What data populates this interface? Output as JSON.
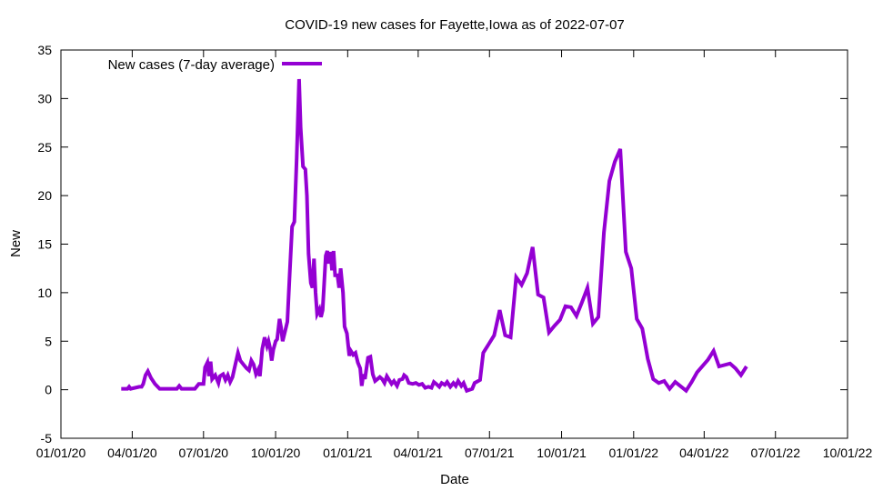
{
  "chart_data": {
    "type": "line",
    "title": "COVID-19 new cases for Fayette,Iowa as of 2022-07-07",
    "xlabel": "Date",
    "ylabel": "New",
    "xlim": [
      "2020-01-01",
      "2022-10-01"
    ],
    "ylim": [
      -5,
      35
    ],
    "x_ticks": [
      "01/01/20",
      "04/01/20",
      "07/01/20",
      "10/01/20",
      "01/01/21",
      "04/01/21",
      "07/01/21",
      "10/01/21",
      "01/01/22",
      "04/01/22",
      "07/01/22",
      "10/01/22"
    ],
    "y_ticks": [
      -5,
      0,
      5,
      10,
      15,
      20,
      25,
      30,
      35
    ],
    "legend_position": "top-left",
    "grid": false,
    "colors": {
      "line": "#9400d3",
      "axis": "#000000",
      "background": "#ffffff"
    },
    "series": [
      {
        "name": "New cases (7-day average)",
        "points": [
          [
            "2020-03-18",
            0.1
          ],
          [
            "2020-03-26",
            0.1
          ],
          [
            "2020-03-28",
            0.3
          ],
          [
            "2020-03-30",
            0.1
          ],
          [
            "2020-04-10",
            0.3
          ],
          [
            "2020-04-13",
            0.3
          ],
          [
            "2020-04-15",
            0.6
          ],
          [
            "2020-04-18",
            1.5
          ],
          [
            "2020-04-21",
            1.9
          ],
          [
            "2020-04-25",
            1.2
          ],
          [
            "2020-04-30",
            0.6
          ],
          [
            "2020-05-06",
            0.1
          ],
          [
            "2020-05-20",
            0.1
          ],
          [
            "2020-05-28",
            0.1
          ],
          [
            "2020-05-31",
            0.4
          ],
          [
            "2020-06-03",
            0.1
          ],
          [
            "2020-06-20",
            0.1
          ],
          [
            "2020-06-25",
            0.6
          ],
          [
            "2020-07-01",
            0.6
          ],
          [
            "2020-07-03",
            2.3
          ],
          [
            "2020-07-06",
            2.8
          ],
          [
            "2020-07-08",
            1.4
          ],
          [
            "2020-07-10",
            2.9
          ],
          [
            "2020-07-12",
            1.1
          ],
          [
            "2020-07-16",
            1.5
          ],
          [
            "2020-07-20",
            0.7
          ],
          [
            "2020-07-22",
            1.4
          ],
          [
            "2020-07-26",
            1.6
          ],
          [
            "2020-07-29",
            1.0
          ],
          [
            "2020-08-01",
            1.5
          ],
          [
            "2020-08-04",
            0.8
          ],
          [
            "2020-08-07",
            1.3
          ],
          [
            "2020-08-10",
            2.4
          ],
          [
            "2020-08-14",
            3.8
          ],
          [
            "2020-08-17",
            3.0
          ],
          [
            "2020-08-21",
            2.6
          ],
          [
            "2020-08-25",
            2.2
          ],
          [
            "2020-08-28",
            2.0
          ],
          [
            "2020-08-31",
            3.0
          ],
          [
            "2020-09-03",
            2.6
          ],
          [
            "2020-09-06",
            1.6
          ],
          [
            "2020-09-09",
            2.1
          ],
          [
            "2020-09-11",
            1.4
          ],
          [
            "2020-09-14",
            4.2
          ],
          [
            "2020-09-17",
            5.4
          ],
          [
            "2020-09-20",
            4.5
          ],
          [
            "2020-09-22",
            5.0
          ],
          [
            "2020-09-24",
            4.3
          ],
          [
            "2020-09-26",
            3.0
          ],
          [
            "2020-09-28",
            4.1
          ],
          [
            "2020-10-01",
            5.0
          ],
          [
            "2020-10-03",
            5.2
          ],
          [
            "2020-10-06",
            7.3
          ],
          [
            "2020-10-08",
            6.4
          ],
          [
            "2020-10-10",
            5.0
          ],
          [
            "2020-10-13",
            6.0
          ],
          [
            "2020-10-16",
            7.0
          ],
          [
            "2020-10-19",
            12.0
          ],
          [
            "2020-10-22",
            16.8
          ],
          [
            "2020-10-25",
            17.3
          ],
          [
            "2020-10-28",
            24.0
          ],
          [
            "2020-10-31",
            32.0
          ],
          [
            "2020-11-02",
            27.0
          ],
          [
            "2020-11-05",
            23.0
          ],
          [
            "2020-11-08",
            22.7
          ],
          [
            "2020-11-10",
            20.0
          ],
          [
            "2020-11-12",
            14.0
          ],
          [
            "2020-11-15",
            11.0
          ],
          [
            "2020-11-17",
            10.5
          ],
          [
            "2020-11-19",
            13.5
          ],
          [
            "2020-11-21",
            10.0
          ],
          [
            "2020-11-23",
            7.8
          ],
          [
            "2020-11-26",
            8.3
          ],
          [
            "2020-11-28",
            7.5
          ],
          [
            "2020-11-30",
            8.2
          ],
          [
            "2020-12-02",
            11.0
          ],
          [
            "2020-12-04",
            13.8
          ],
          [
            "2020-12-06",
            14.3
          ],
          [
            "2020-12-08",
            13.0
          ],
          [
            "2020-12-10",
            14.2
          ],
          [
            "2020-12-12",
            12.3
          ],
          [
            "2020-12-14",
            14.3
          ],
          [
            "2020-12-16",
            11.8
          ],
          [
            "2020-12-19",
            11.8
          ],
          [
            "2020-12-21",
            10.5
          ],
          [
            "2020-12-23",
            12.5
          ],
          [
            "2020-12-26",
            10.0
          ],
          [
            "2020-12-28",
            6.5
          ],
          [
            "2020-12-31",
            5.8
          ],
          [
            "2021-01-03",
            3.5
          ],
          [
            "2021-01-05",
            4.0
          ],
          [
            "2021-01-08",
            3.6
          ],
          [
            "2021-01-11",
            3.8
          ],
          [
            "2021-01-14",
            2.8
          ],
          [
            "2021-01-17",
            2.2
          ],
          [
            "2021-01-19",
            0.4
          ],
          [
            "2021-01-21",
            1.6
          ],
          [
            "2021-01-23",
            1.1
          ],
          [
            "2021-01-27",
            3.3
          ],
          [
            "2021-01-30",
            3.4
          ],
          [
            "2021-02-02",
            1.6
          ],
          [
            "2021-02-05",
            0.9
          ],
          [
            "2021-02-08",
            1.1
          ],
          [
            "2021-02-11",
            1.3
          ],
          [
            "2021-02-14",
            1.1
          ],
          [
            "2021-02-17",
            0.7
          ],
          [
            "2021-02-20",
            1.4
          ],
          [
            "2021-02-23",
            1.0
          ],
          [
            "2021-02-26",
            0.6
          ],
          [
            "2021-03-01",
            0.9
          ],
          [
            "2021-03-05",
            0.4
          ],
          [
            "2021-03-08",
            1.0
          ],
          [
            "2021-03-12",
            1.1
          ],
          [
            "2021-03-14",
            1.5
          ],
          [
            "2021-03-17",
            1.3
          ],
          [
            "2021-03-20",
            0.7
          ],
          [
            "2021-03-25",
            0.6
          ],
          [
            "2021-03-29",
            0.7
          ],
          [
            "2021-04-02",
            0.5
          ],
          [
            "2021-04-06",
            0.6
          ],
          [
            "2021-04-10",
            0.2
          ],
          [
            "2021-04-14",
            0.3
          ],
          [
            "2021-04-18",
            0.2
          ],
          [
            "2021-04-21",
            0.8
          ],
          [
            "2021-04-24",
            0.6
          ],
          [
            "2021-04-28",
            0.3
          ],
          [
            "2021-05-01",
            0.7
          ],
          [
            "2021-05-05",
            0.5
          ],
          [
            "2021-05-08",
            0.8
          ],
          [
            "2021-05-12",
            0.3
          ],
          [
            "2021-05-16",
            0.7
          ],
          [
            "2021-05-19",
            0.4
          ],
          [
            "2021-05-22",
            0.9
          ],
          [
            "2021-05-26",
            0.4
          ],
          [
            "2021-05-29",
            0.7
          ],
          [
            "2021-06-02",
            -0.1
          ],
          [
            "2021-06-09",
            0.1
          ],
          [
            "2021-06-12",
            0.7
          ],
          [
            "2021-06-19",
            1.0
          ],
          [
            "2021-06-23",
            3.8
          ],
          [
            "2021-06-30",
            4.7
          ],
          [
            "2021-07-07",
            5.6
          ],
          [
            "2021-07-14",
            8.2
          ],
          [
            "2021-07-21",
            5.6
          ],
          [
            "2021-07-28",
            5.4
          ],
          [
            "2021-08-04",
            11.6
          ],
          [
            "2021-08-11",
            10.8
          ],
          [
            "2021-08-18",
            12.0
          ],
          [
            "2021-08-25",
            14.7
          ],
          [
            "2021-09-01",
            9.8
          ],
          [
            "2021-09-08",
            9.5
          ],
          [
            "2021-09-15",
            5.9
          ],
          [
            "2021-09-22",
            6.6
          ],
          [
            "2021-09-29",
            7.2
          ],
          [
            "2021-10-06",
            8.6
          ],
          [
            "2021-10-13",
            8.5
          ],
          [
            "2021-10-20",
            7.6
          ],
          [
            "2021-10-27",
            9.0
          ],
          [
            "2021-11-03",
            10.5
          ],
          [
            "2021-11-10",
            6.8
          ],
          [
            "2021-11-17",
            7.5
          ],
          [
            "2021-11-24",
            16.2
          ],
          [
            "2021-12-01",
            21.5
          ],
          [
            "2021-12-08",
            23.5
          ],
          [
            "2021-12-15",
            24.8
          ],
          [
            "2021-12-22",
            14.2
          ],
          [
            "2021-12-29",
            12.5
          ],
          [
            "2022-01-05",
            7.3
          ],
          [
            "2022-01-12",
            6.3
          ],
          [
            "2022-01-19",
            3.2
          ],
          [
            "2022-01-26",
            1.1
          ],
          [
            "2022-02-02",
            0.7
          ],
          [
            "2022-02-09",
            0.9
          ],
          [
            "2022-02-16",
            0.1
          ],
          [
            "2022-02-23",
            0.8
          ],
          [
            "2022-03-09",
            -0.1
          ],
          [
            "2022-03-16",
            0.8
          ],
          [
            "2022-03-23",
            1.8
          ],
          [
            "2022-04-06",
            3.1
          ],
          [
            "2022-04-13",
            4.0
          ],
          [
            "2022-04-20",
            2.4
          ],
          [
            "2022-05-04",
            2.7
          ],
          [
            "2022-05-11",
            2.2
          ],
          [
            "2022-05-18",
            1.5
          ],
          [
            "2022-05-25",
            2.4
          ]
        ]
      }
    ]
  }
}
